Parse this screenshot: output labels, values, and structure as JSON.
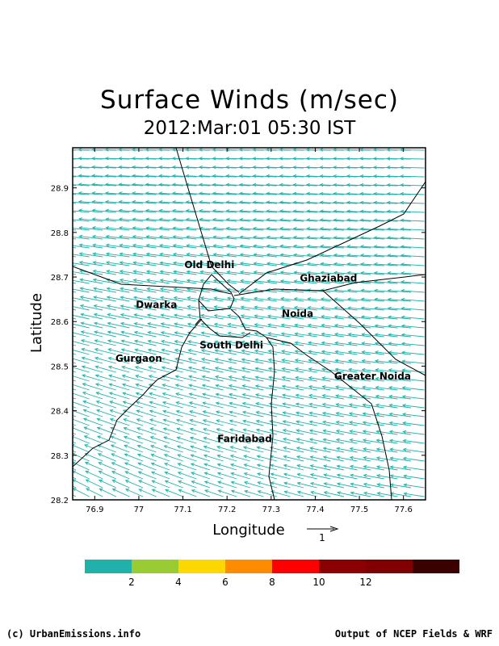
{
  "title": "Surface Winds (m/sec)",
  "subtitle": "2012:Mar:01 05:30 IST",
  "map": {
    "xlabel": "Longitude",
    "ylabel": "Latitude",
    "lon_range": [
      76.85,
      77.65
    ],
    "lat_range": [
      28.2,
      28.99
    ],
    "x_ticks": [
      "76.9",
      "77",
      "77.1",
      "77.2",
      "77.3",
      "77.4",
      "77.5",
      "77.6"
    ],
    "y_ticks": [
      "28.2",
      "28.3",
      "28.4",
      "28.5",
      "28.6",
      "28.7",
      "28.8",
      "28.9"
    ],
    "vector_color": "#20b2aa",
    "places": [
      {
        "name": "Old Delhi",
        "lon": 77.16,
        "lat": 28.72
      },
      {
        "name": "Ghaziabad",
        "lon": 77.43,
        "lat": 28.69
      },
      {
        "name": "Dwarka",
        "lon": 77.04,
        "lat": 28.63
      },
      {
        "name": "Noida",
        "lon": 77.36,
        "lat": 28.61
      },
      {
        "name": "South Delhi",
        "lon": 77.21,
        "lat": 28.54
      },
      {
        "name": "Gurgaon",
        "lon": 77.0,
        "lat": 28.51
      },
      {
        "name": "Greater Noida",
        "lon": 77.53,
        "lat": 28.47
      },
      {
        "name": "Faridabad",
        "lon": 77.24,
        "lat": 28.33
      }
    ]
  },
  "reference_vector": {
    "label": "1",
    "magnitude": 1
  },
  "colorbar": {
    "colors": [
      "#20b2aa",
      "#99cc33",
      "#ffd700",
      "#ff8c00",
      "#ff0000",
      "#8b0000",
      "#800000",
      "#3b0000"
    ],
    "labels": [
      "2",
      "4",
      "6",
      "8",
      "10",
      "12"
    ]
  },
  "footer": {
    "left": "(c) UrbanEmissions.info",
    "right": "Output of NCEP Fields & WRF"
  }
}
